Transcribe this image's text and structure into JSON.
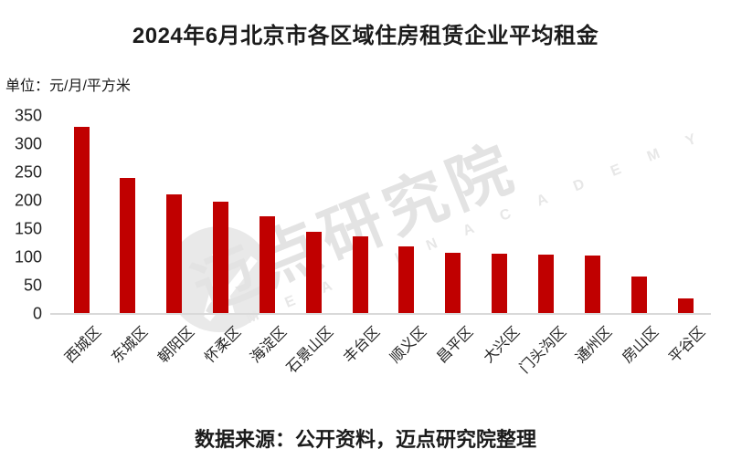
{
  "title": "2024年6月北京市各区域住房租赁企业平均租金",
  "unit_label": "单位：元/月/平方米",
  "footer": "数据来源：公开资料，迈点研究院整理",
  "watermark": {
    "cjk": "迈点研究院",
    "latin": "M E A D I N  A C A D E M Y"
  },
  "colors": {
    "bar": "#C00000",
    "text": "#1B1B1B",
    "tick_text": "#242424",
    "axis_line": "#D9D9D9",
    "watermark_gray": "#E3E3E3"
  },
  "chart_data": {
    "type": "bar",
    "title": "2024年6月北京市各区域住房租赁企业平均租金",
    "unit": "元/月/平方米",
    "categories": [
      "西城区",
      "东城区",
      "朝阳区",
      "怀柔区",
      "海淀区",
      "石景山区",
      "丰台区",
      "顺义区",
      "昌平区",
      "大兴区",
      "门头沟区",
      "通州区",
      "房山区",
      "平谷区"
    ],
    "values": [
      330,
      240,
      211,
      198,
      172,
      145,
      136,
      118,
      108,
      105,
      104,
      103,
      66,
      26
    ],
    "xlabel": "",
    "ylabel": "",
    "ylim": [
      0,
      350
    ],
    "yticks": [
      0,
      50,
      100,
      150,
      200,
      250,
      300,
      350
    ],
    "grid": false,
    "legend": false,
    "bar_color": "#C00000",
    "x_tick_rotation_deg": 45,
    "source_note": "数据来源：公开资料，迈点研究院整理"
  }
}
